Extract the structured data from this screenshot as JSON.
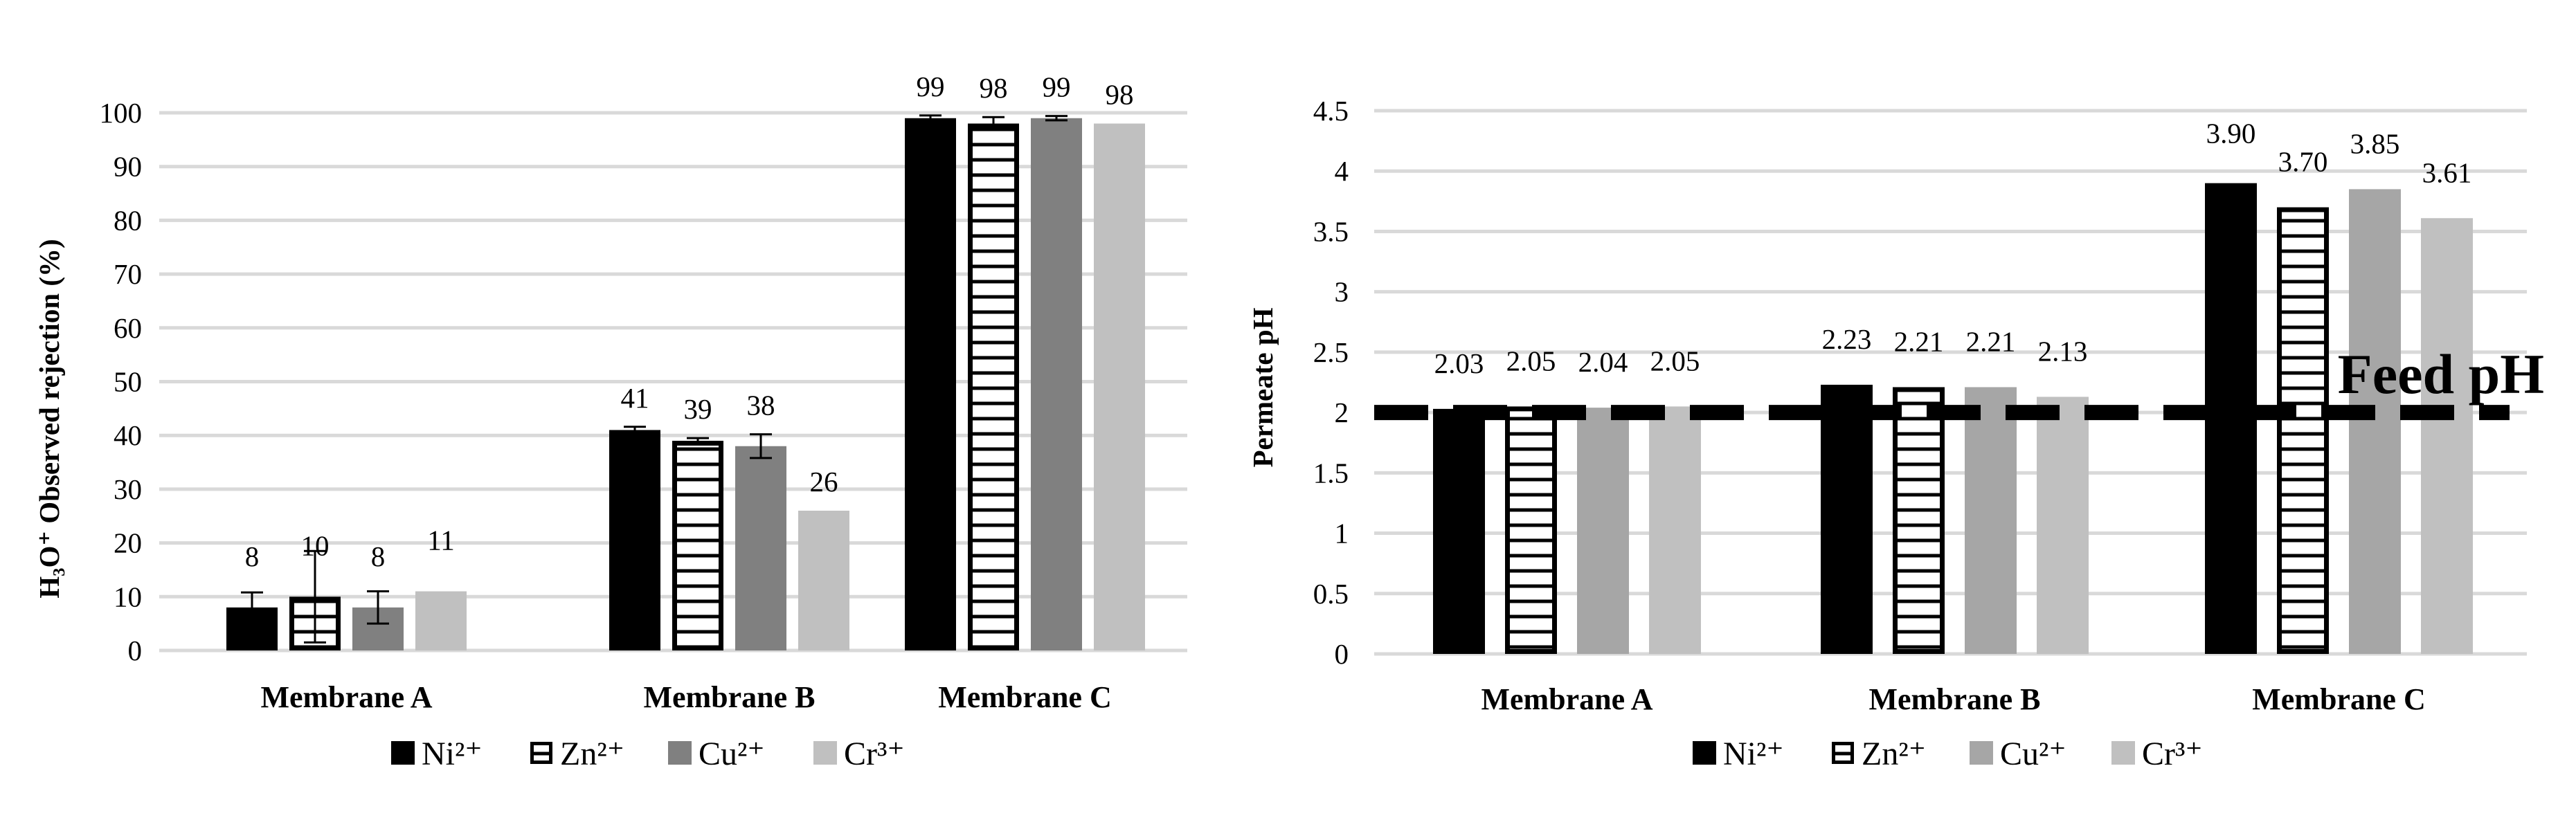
{
  "chart_data": [
    {
      "type": "bar",
      "title": "",
      "ylabel": "H₃O⁺ Observed rejection (%)",
      "xlabel": "",
      "ylim": [
        0,
        100
      ],
      "yticks": [
        "0",
        "10",
        "20",
        "30",
        "40",
        "50",
        "60",
        "70",
        "80",
        "90",
        "100"
      ],
      "categories": [
        "Membrane A",
        "Membrane B",
        "Membrane C"
      ],
      "series": [
        {
          "name": "Ni²⁺",
          "values": [
            8,
            41,
            99
          ],
          "labels": [
            "8",
            "41",
            "99"
          ],
          "errors": [
            2.8,
            0.6,
            0.5
          ]
        },
        {
          "name": "Zn²⁺",
          "values": [
            10,
            39,
            98
          ],
          "labels": [
            "10",
            "39",
            "98"
          ],
          "errors": [
            8.5,
            0.5,
            1.2
          ]
        },
        {
          "name": "Cu²⁺",
          "values": [
            8,
            38,
            99
          ],
          "labels": [
            "8",
            "38",
            "99"
          ],
          "errors": [
            3.0,
            2.2,
            0.4
          ]
        },
        {
          "name": "Cr³⁺",
          "values": [
            11,
            26,
            98
          ],
          "labels": [
            "11",
            "26",
            "98"
          ],
          "errors": [
            0,
            0,
            0
          ]
        }
      ],
      "legend": [
        "Ni²⁺",
        "Zn²⁺",
        "Cu²⁺",
        "Cr³⁺"
      ],
      "legend_position": "bottom"
    },
    {
      "type": "bar",
      "title": "",
      "ylabel": "Permeate pH",
      "xlabel": "",
      "ylim": [
        0,
        4.5
      ],
      "yticks": [
        "0",
        "0.5",
        "1",
        "1.5",
        "2",
        "2.5",
        "3",
        "3.5",
        "4",
        "4.5"
      ],
      "categories": [
        "Membrane A",
        "Membrane B",
        "Membrane C"
      ],
      "series": [
        {
          "name": "Ni²⁺",
          "values": [
            2.03,
            2.23,
            3.9
          ],
          "labels": [
            "2.03",
            "2.23",
            "3.90"
          ]
        },
        {
          "name": "Zn²⁺",
          "values": [
            2.05,
            2.21,
            3.7
          ],
          "labels": [
            "2.05",
            "2.21",
            "3.70"
          ]
        },
        {
          "name": "Cu²⁺",
          "values": [
            2.04,
            2.21,
            3.85
          ],
          "labels": [
            "2.04",
            "2.21",
            "3.85"
          ]
        },
        {
          "name": "Cr³⁺",
          "values": [
            2.05,
            2.13,
            3.61
          ],
          "labels": [
            "2.05",
            "2.13",
            "3.61"
          ]
        }
      ],
      "reference_line": {
        "value": 2,
        "label": "Feed pH"
      },
      "legend": [
        "Ni²⁺",
        "Zn²⁺",
        "Cu²⁺",
        "Cr³⁺"
      ],
      "legend_position": "bottom"
    }
  ],
  "colors": {
    "ni": "#000000",
    "zn_stroke": "#000000",
    "zn_fill": "#ffffff",
    "cu": "#808080",
    "cu_right": "#a6a6a6",
    "cr": "#c0c0c0",
    "grid": "#d9d9d9"
  }
}
